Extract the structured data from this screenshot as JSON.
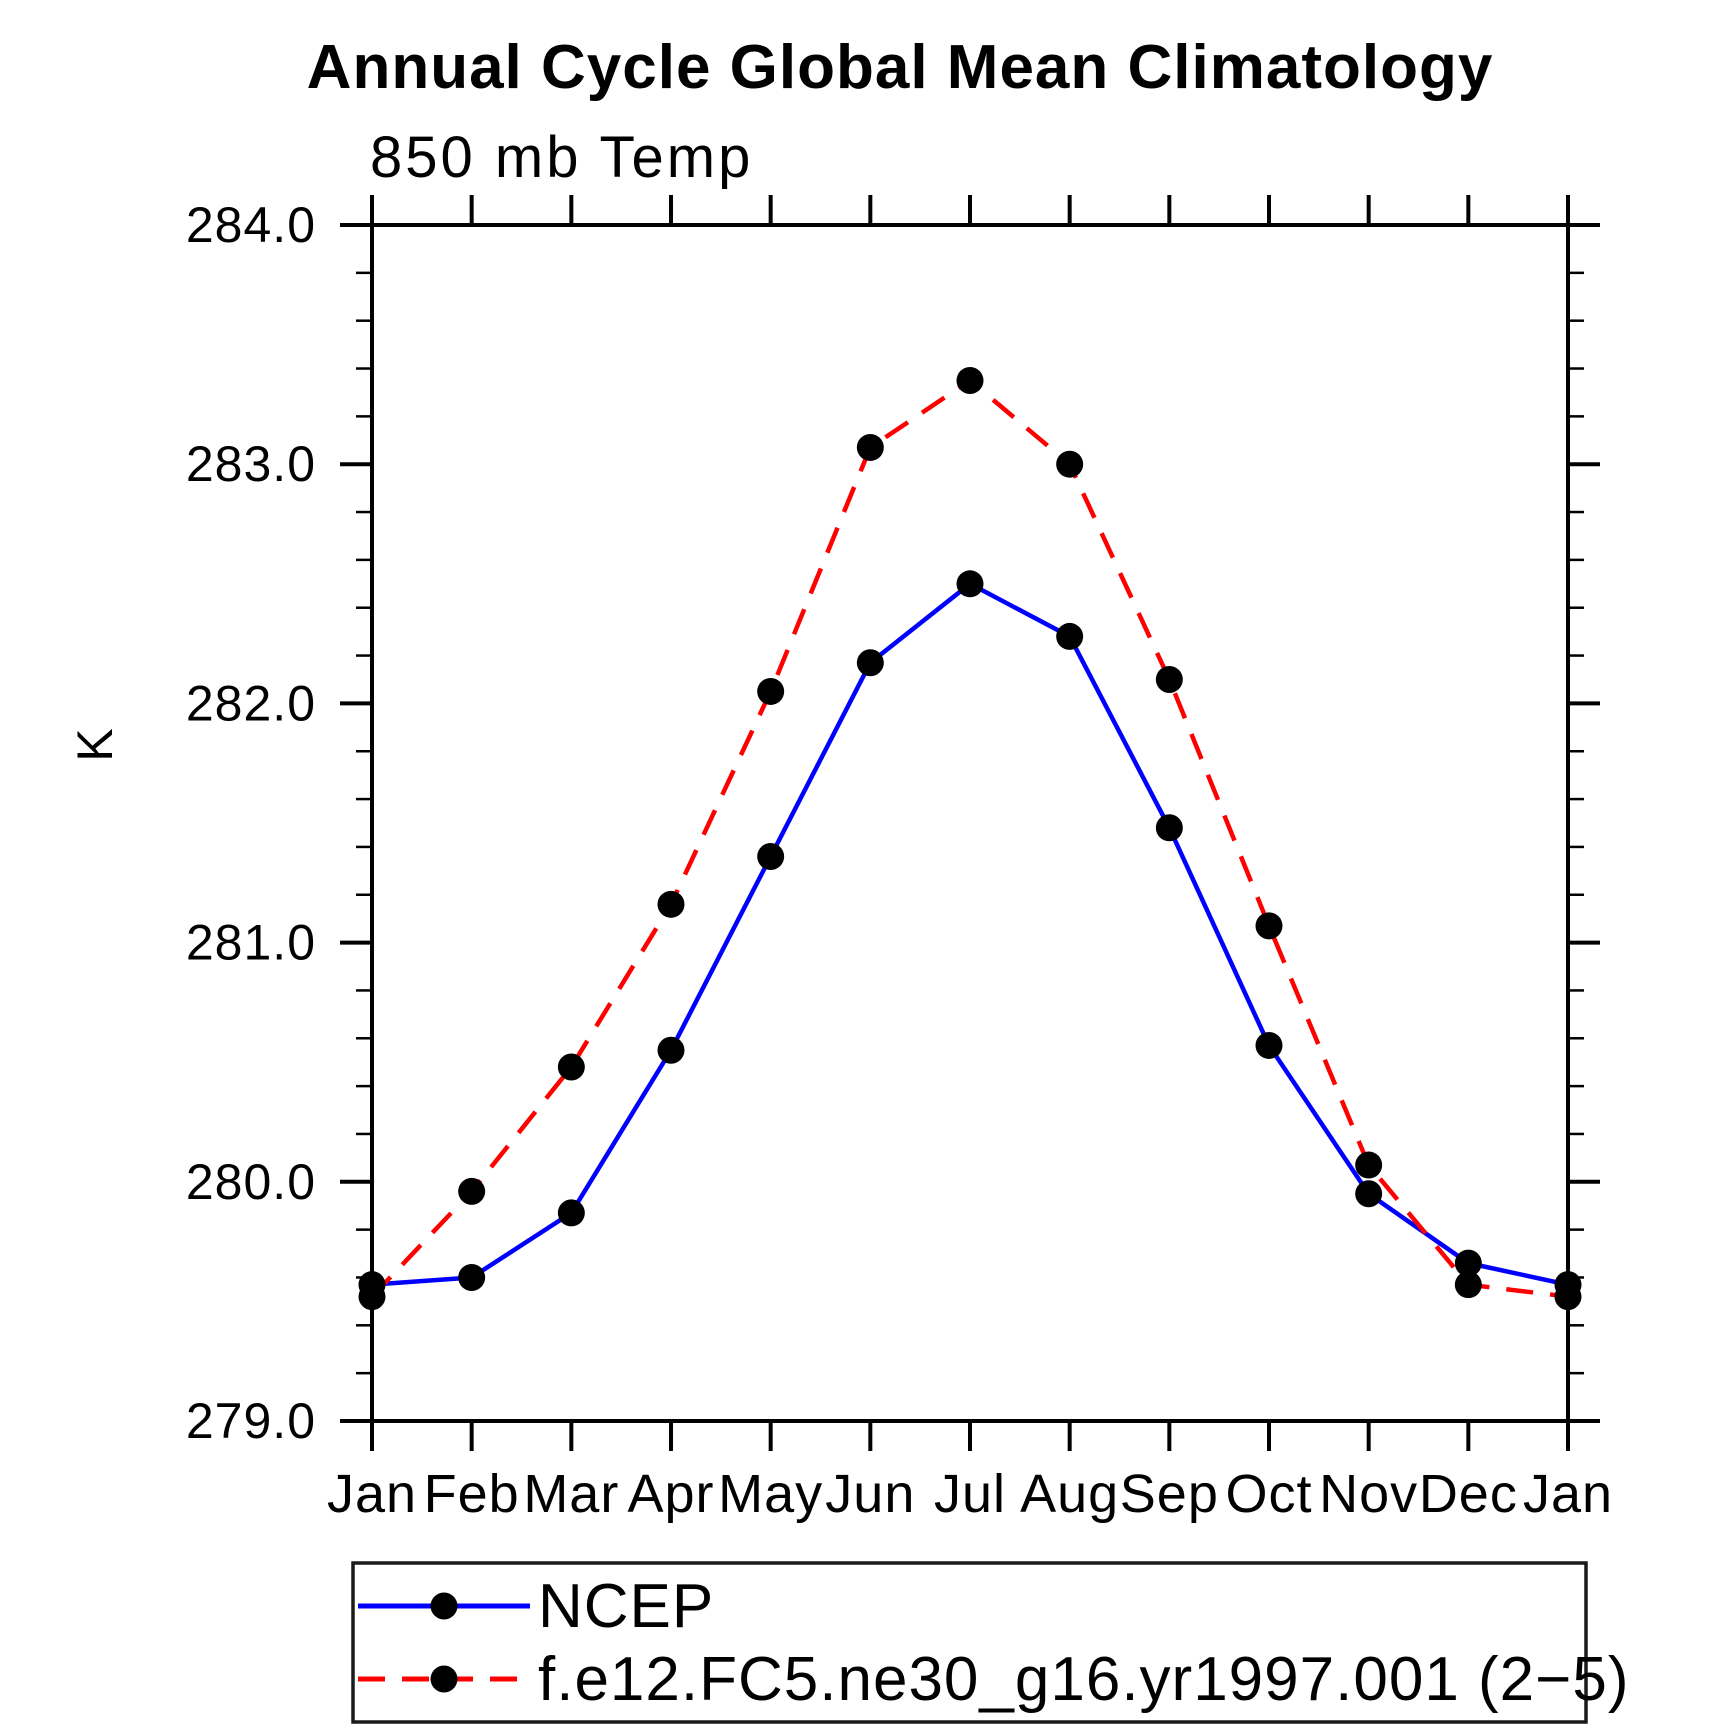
{
  "title": "Annual Cycle Global Mean Climatology",
  "chart_data": {
    "type": "line",
    "subtitle": "850 mb Temp",
    "ylabel": "K",
    "ylim": [
      279.0,
      284.0
    ],
    "y_major_step": 1.0,
    "y_minor_step": 0.2,
    "y_tick_format_decimals": 1,
    "grid": false,
    "legend_position": "bottom",
    "categories": [
      "Jan",
      "Feb",
      "Mar",
      "Apr",
      "May",
      "Jun",
      "Jul",
      "Aug",
      "Sep",
      "Oct",
      "Nov",
      "Dec",
      "Jan"
    ],
    "series": [
      {
        "name": "NCEP",
        "color": "#0000ff",
        "line_style": "solid",
        "marker": "circle",
        "marker_color": "#000000",
        "values": [
          279.57,
          279.6,
          279.87,
          280.55,
          281.36,
          282.17,
          282.5,
          282.28,
          281.48,
          280.57,
          279.95,
          279.66,
          279.57
        ]
      },
      {
        "name": "f.e12.FC5.ne30_g16.yr1997.001 (2−5)",
        "color": "#ff0000",
        "line_style": "dashed",
        "marker": "circle",
        "marker_color": "#000000",
        "values": [
          279.52,
          279.96,
          280.48,
          281.16,
          282.05,
          283.07,
          283.35,
          283.0,
          282.1,
          281.07,
          280.07,
          279.57,
          279.52
        ]
      }
    ]
  }
}
